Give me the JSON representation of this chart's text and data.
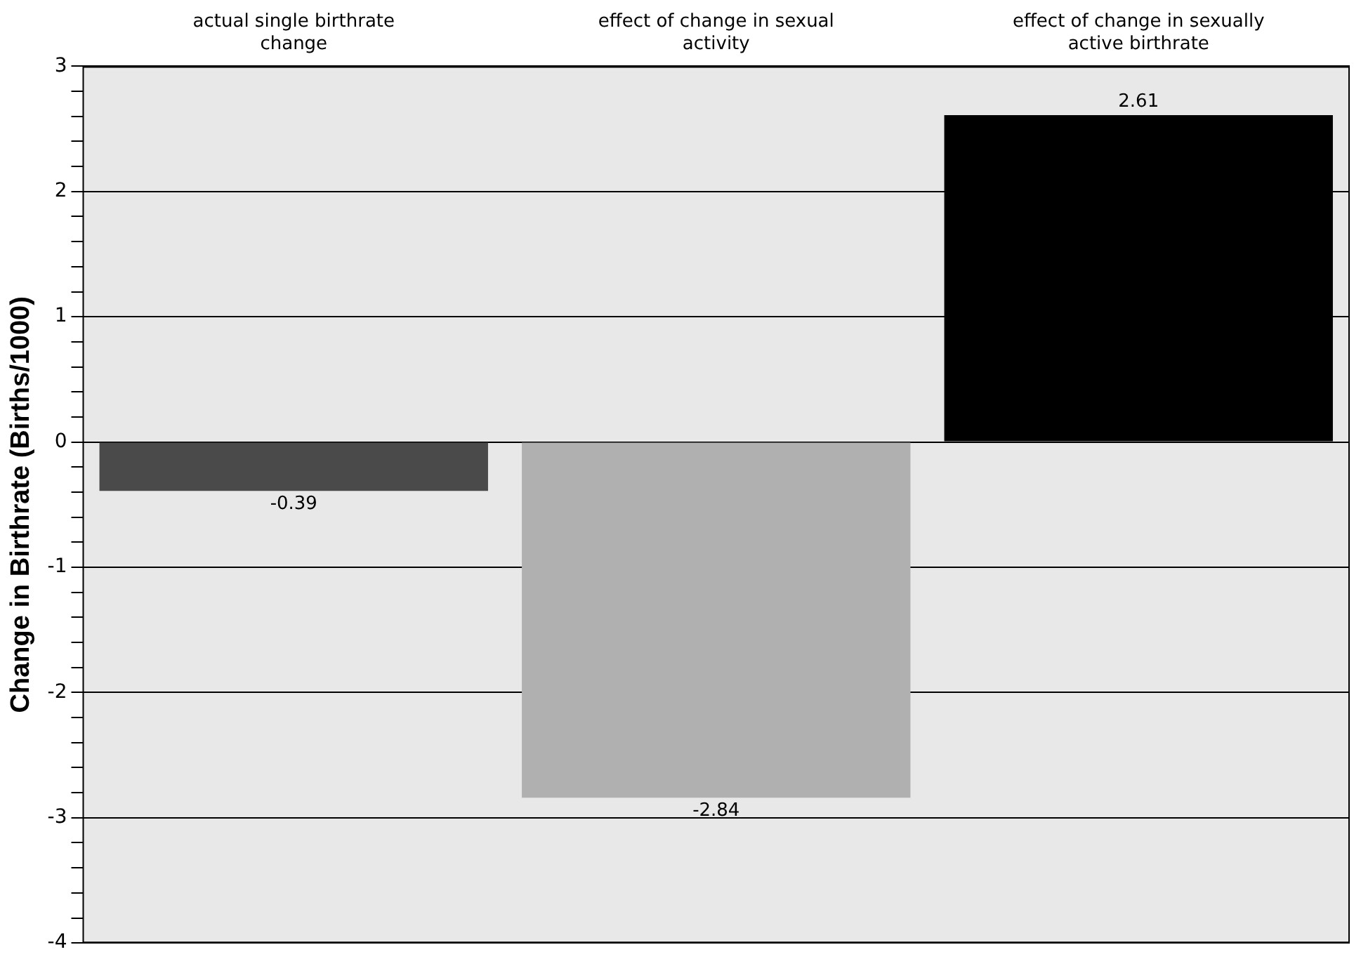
{
  "chart_data": {
    "type": "bar",
    "ylabel": "Change in Birthrate (Births/1000)",
    "categories": [
      "actual single birthrate change",
      "effect of change in sexual activity",
      "effect of change in sexually active birthrate"
    ],
    "values": [
      -0.39,
      -2.84,
      2.61
    ],
    "colors": [
      "#4a4a4a",
      "#b0b0b0",
      "#000000"
    ],
    "ylim": [
      -4,
      3
    ],
    "yticks": [
      -4,
      {
        "value": -3.8,
        "label": null
      },
      {
        "value": -3.6,
        "label": null
      },
      {
        "value": -3.4,
        "label": null
      },
      {
        "value": -3.2,
        "label": null
      },
      -3,
      {
        "value": -2.8,
        "label": null
      },
      {
        "value": -2.6,
        "label": null
      },
      {
        "value": -2.4,
        "label": null
      },
      {
        "value": -2.2,
        "label": null
      },
      -2,
      {
        "value": -1.8,
        "label": null
      },
      {
        "value": -1.6,
        "label": null
      },
      {
        "value": -1.4,
        "label": null
      },
      {
        "value": -1.2,
        "label": null
      },
      -1,
      {
        "value": -0.8,
        "label": null
      },
      {
        "value": -0.6,
        "label": null
      },
      {
        "value": -0.4,
        "label": null
      },
      {
        "value": -0.2,
        "label": null
      },
      0,
      {
        "value": 0.2,
        "label": null
      },
      {
        "value": 0.4,
        "label": null
      },
      {
        "value": 0.6,
        "label": null
      },
      {
        "value": 0.8,
        "label": null
      },
      1,
      {
        "value": 1.2,
        "label": null
      },
      {
        "value": 1.4,
        "label": null
      },
      {
        "value": 1.6,
        "label": null
      },
      {
        "value": 1.8,
        "label": null
      },
      2,
      {
        "value": 2.2,
        "label": null
      },
      {
        "value": 2.4,
        "label": null
      },
      {
        "value": 2.6,
        "label": null
      },
      {
        "value": 2.8,
        "label": null
      },
      3
    ],
    "grid": "y",
    "legend": false,
    "data_labels": true
  }
}
